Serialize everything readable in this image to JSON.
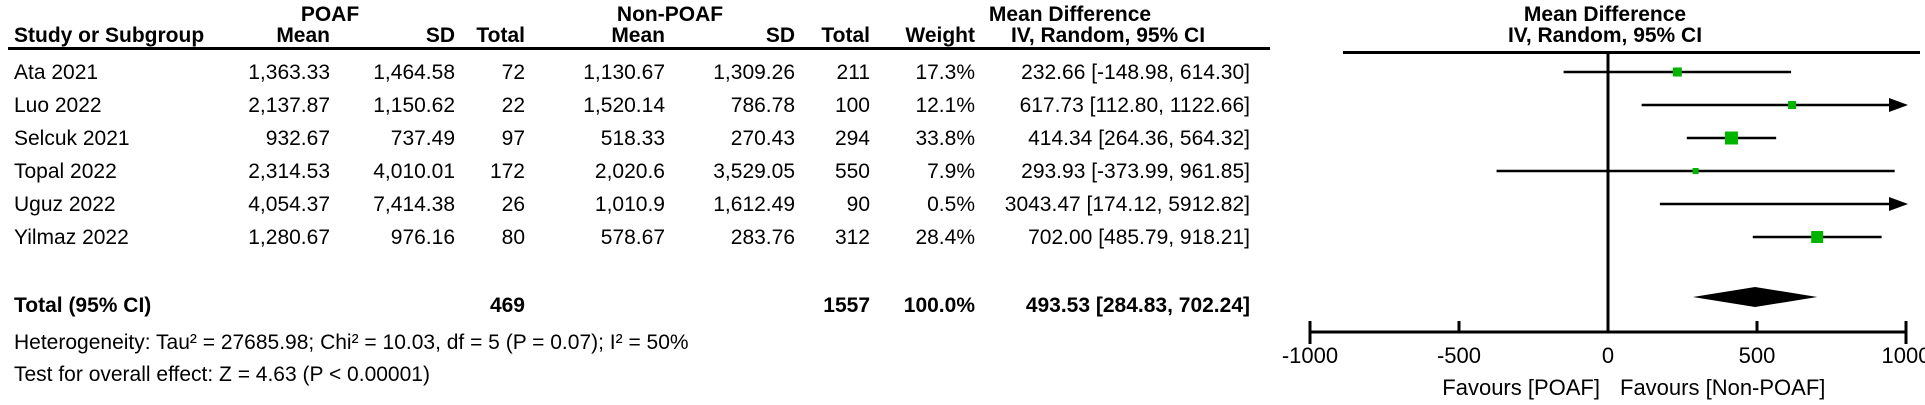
{
  "table": {
    "group_headers": {
      "poaf": "POAF",
      "non_poaf": "Non-POAF",
      "mean_difference": "Mean Difference"
    },
    "col_headers": {
      "study": "Study or Subgroup",
      "mean": "Mean",
      "sd": "SD",
      "total": "Total",
      "weight": "Weight",
      "ci": "IV, Random, 95% CI"
    },
    "rows": [
      {
        "study": "Ata 2021",
        "p_mean": "1,363.33",
        "p_sd": "1,464.58",
        "p_total": "72",
        "n_mean": "1,130.67",
        "n_sd": "1,309.26",
        "n_total": "211",
        "weight": "17.3%",
        "ci": "232.66 [-148.98, 614.30]"
      },
      {
        "study": "Luo 2022",
        "p_mean": "2,137.87",
        "p_sd": "1,150.62",
        "p_total": "22",
        "n_mean": "1,520.14",
        "n_sd": "786.78",
        "n_total": "100",
        "weight": "12.1%",
        "ci": "617.73 [112.80, 1122.66]"
      },
      {
        "study": "Selcuk 2021",
        "p_mean": "932.67",
        "p_sd": "737.49",
        "p_total": "97",
        "n_mean": "518.33",
        "n_sd": "270.43",
        "n_total": "294",
        "weight": "33.8%",
        "ci": "414.34 [264.36, 564.32]"
      },
      {
        "study": "Topal 2022",
        "p_mean": "2,314.53",
        "p_sd": "4,010.01",
        "p_total": "172",
        "n_mean": "2,020.6",
        "n_sd": "3,529.05",
        "n_total": "550",
        "weight": "7.9%",
        "ci": "293.93 [-373.99, 961.85]"
      },
      {
        "study": "Uguz 2022",
        "p_mean": "4,054.37",
        "p_sd": "7,414.38",
        "p_total": "26",
        "n_mean": "1,010.9",
        "n_sd": "1,612.49",
        "n_total": "90",
        "weight": "0.5%",
        "ci": "3043.47 [174.12, 5912.82]"
      },
      {
        "study": "Yilmaz 2022",
        "p_mean": "1,280.67",
        "p_sd": "976.16",
        "p_total": "80",
        "n_mean": "578.67",
        "n_sd": "283.76",
        "n_total": "312",
        "weight": "28.4%",
        "ci": "702.00 [485.79, 918.21]"
      }
    ],
    "total_row": {
      "label": "Total (95% CI)",
      "p_total": "469",
      "n_total": "1557",
      "weight": "100.0%",
      "ci": "493.53 [284.83, 702.24]"
    },
    "heterogeneity": "Heterogeneity: Tau² = 27685.98; Chi² = 10.03, df = 5 (P = 0.07); I² = 50%",
    "overall_effect": "Test for overall effect: Z = 4.63 (P < 0.00001)"
  },
  "plot": {
    "favours_left": "Favours [POAF]",
    "favours_right": "Favours [Non-POAF]"
  },
  "chart_data": {
    "type": "forest",
    "title": "Mean Difference",
    "subtitle": "IV, Random, 95% CI",
    "xlim": [
      -1000,
      1000
    ],
    "x_ticks": [
      -1000,
      -500,
      0,
      500,
      1000
    ],
    "x_tick_labels": [
      "-1000",
      "-500",
      "0",
      "500",
      "1000"
    ],
    "studies": [
      {
        "name": "Ata 2021",
        "md": 232.66,
        "ci_low": -148.98,
        "ci_high": 614.3,
        "weight": 17.3
      },
      {
        "name": "Luo 2022",
        "md": 617.73,
        "ci_low": 112.8,
        "ci_high": 1122.66,
        "weight": 12.1
      },
      {
        "name": "Selcuk 2021",
        "md": 414.34,
        "ci_low": 264.36,
        "ci_high": 564.32,
        "weight": 33.8
      },
      {
        "name": "Topal 2022",
        "md": 293.93,
        "ci_low": -373.99,
        "ci_high": 961.85,
        "weight": 7.9
      },
      {
        "name": "Uguz 2022",
        "md": 3043.47,
        "ci_low": 174.12,
        "ci_high": 5912.82,
        "weight": 0.5
      },
      {
        "name": "Yilmaz 2022",
        "md": 702.0,
        "ci_low": 485.79,
        "ci_high": 918.21,
        "weight": 28.4
      }
    ],
    "total": {
      "md": 493.53,
      "ci_low": 284.83,
      "ci_high": 702.24
    },
    "marker_color": "#00b400",
    "line_color": "#000000",
    "favours_left": "Favours [POAF]",
    "favours_right": "Favours [Non-POAF]"
  }
}
